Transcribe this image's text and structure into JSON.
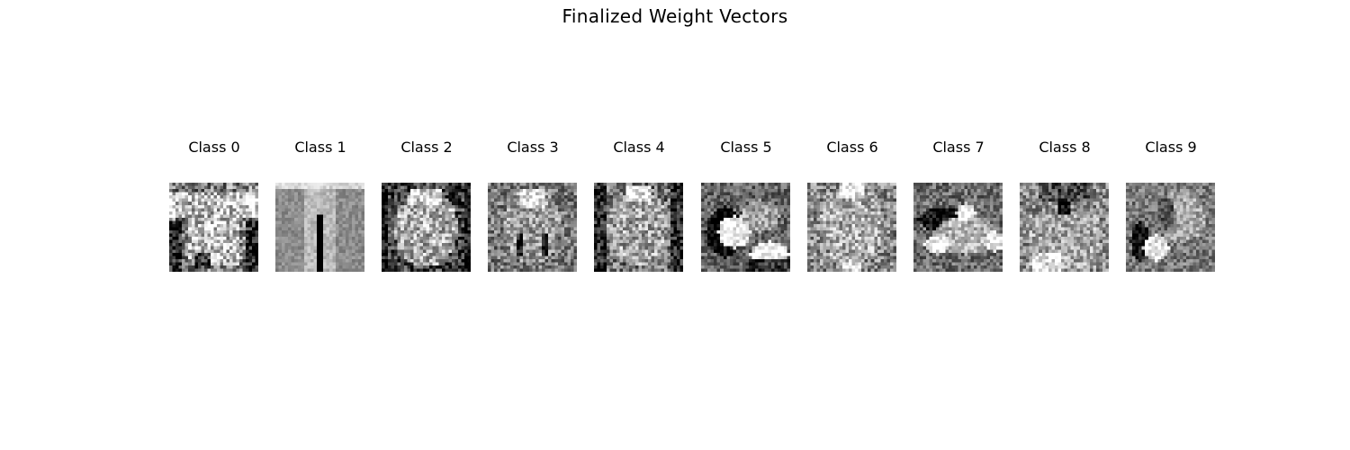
{
  "figure": {
    "title": "Finalized Weight Vectors",
    "panels": [
      {
        "label": "Class 0",
        "motif": "tshirt"
      },
      {
        "label": "Class 1",
        "motif": "trouser"
      },
      {
        "label": "Class 2",
        "motif": "pullover"
      },
      {
        "label": "Class 3",
        "motif": "dress"
      },
      {
        "label": "Class 4",
        "motif": "coat"
      },
      {
        "label": "Class 5",
        "motif": "sandal"
      },
      {
        "label": "Class 6",
        "motif": "shirt"
      },
      {
        "label": "Class 7",
        "motif": "sneaker"
      },
      {
        "label": "Class 8",
        "motif": "bag"
      },
      {
        "label": "Class 9",
        "motif": "boot"
      }
    ],
    "grid_size": 28,
    "colormap": "gray"
  }
}
